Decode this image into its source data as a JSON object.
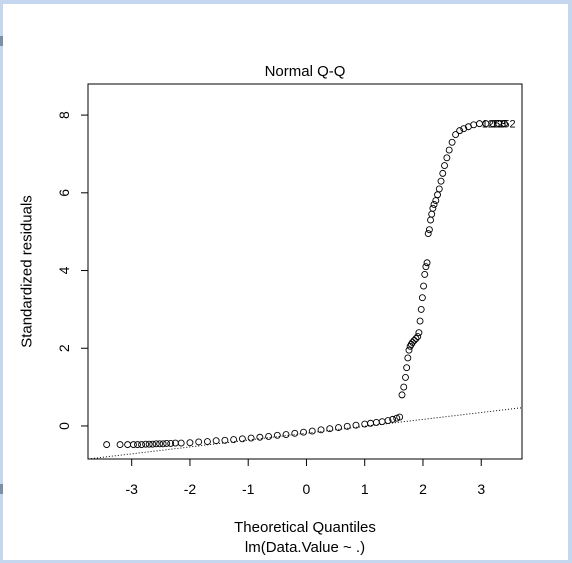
{
  "chart_data": {
    "type": "scatter",
    "title": "Normal Q-Q",
    "xlabel": "Theoretical Quantiles",
    "xlabel_sub": "lm(Data.Value ~ .)",
    "ylabel": "Standardized residuals",
    "xlim": [
      -3.75,
      3.7
    ],
    "ylim": [
      -0.85,
      8.8
    ],
    "x_ticks": [
      -3,
      -2,
      -1,
      0,
      1,
      2,
      3
    ],
    "y_ticks": [
      0,
      2,
      4,
      6,
      8
    ],
    "reference_line": {
      "x": [
        -3.75,
        3.7
      ],
      "y": [
        -0.85,
        0.47
      ],
      "style": "dotted"
    },
    "point_style": "open-circle",
    "point_labels": [
      {
        "text": "1253",
        "x": 3.22,
        "y": 7.78
      },
      {
        "text": "1252",
        "x": 3.38,
        "y": 7.78
      }
    ],
    "x": [
      -3.43,
      -3.2,
      -3.07,
      -2.97,
      -2.9,
      -2.83,
      -2.76,
      -2.7,
      -2.64,
      -2.58,
      -2.52,
      -2.46,
      -2.4,
      -2.33,
      -2.25,
      -2.15,
      -2.0,
      -1.85,
      -1.7,
      -1.55,
      -1.4,
      -1.25,
      -1.1,
      -0.95,
      -0.8,
      -0.65,
      -0.5,
      -0.35,
      -0.2,
      -0.05,
      0.1,
      0.25,
      0.4,
      0.55,
      0.7,
      0.85,
      1.0,
      1.1,
      1.2,
      1.3,
      1.4,
      1.48,
      1.55,
      1.6,
      1.64,
      1.67,
      1.7,
      1.72,
      1.74,
      1.76,
      1.78,
      1.8,
      1.82,
      1.85,
      1.88,
      1.91,
      1.93,
      1.95,
      1.97,
      1.99,
      2.01,
      2.03,
      2.05,
      2.07,
      2.09,
      2.11,
      2.13,
      2.15,
      2.17,
      2.19,
      2.22,
      2.25,
      2.28,
      2.31,
      2.34,
      2.37,
      2.41,
      2.45,
      2.5,
      2.56,
      2.63,
      2.7,
      2.78,
      2.87,
      2.97,
      3.08,
      3.2,
      3.3,
      3.4
    ],
    "y": [
      -0.48,
      -0.48,
      -0.48,
      -0.48,
      -0.48,
      -0.48,
      -0.47,
      -0.47,
      -0.47,
      -0.46,
      -0.46,
      -0.46,
      -0.45,
      -0.45,
      -0.44,
      -0.44,
      -0.43,
      -0.41,
      -0.4,
      -0.38,
      -0.37,
      -0.35,
      -0.33,
      -0.31,
      -0.29,
      -0.27,
      -0.24,
      -0.22,
      -0.19,
      -0.16,
      -0.13,
      -0.1,
      -0.07,
      -0.04,
      -0.01,
      0.02,
      0.05,
      0.07,
      0.09,
      0.11,
      0.14,
      0.17,
      0.2,
      0.23,
      0.8,
      1.0,
      1.25,
      1.5,
      1.75,
      1.95,
      2.05,
      2.1,
      2.15,
      2.2,
      2.25,
      2.3,
      2.4,
      2.7,
      3.0,
      3.3,
      3.6,
      3.9,
      4.1,
      4.2,
      4.95,
      5.05,
      5.3,
      5.45,
      5.6,
      5.7,
      5.8,
      5.95,
      6.1,
      6.3,
      6.5,
      6.7,
      6.9,
      7.1,
      7.3,
      7.5,
      7.6,
      7.65,
      7.7,
      7.75,
      7.78,
      7.78,
      7.78,
      7.78,
      7.78
    ]
  }
}
